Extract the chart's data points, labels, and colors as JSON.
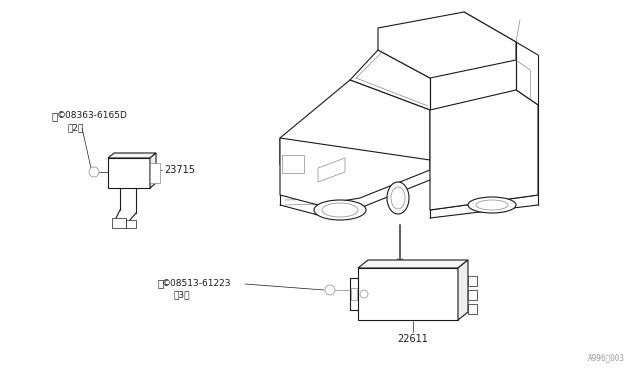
{
  "bg_color": "#ffffff",
  "line_color": "#1a1a1a",
  "gray_color": "#888888",
  "light_gray": "#cccccc",
  "fig_width": 6.4,
  "fig_height": 3.72,
  "dpi": 100,
  "labels": {
    "part1_num": "23715",
    "part2_num": "22611",
    "screw1": "©08363-6165D",
    "screw1_qty": "（2）",
    "screw2": "©08513-61223",
    "screw2_qty": "（3）"
  },
  "watermark": "A996\u0003003",
  "font_size_label": 7.0,
  "font_size_small": 6.5,
  "font_size_watermark": 5.5
}
